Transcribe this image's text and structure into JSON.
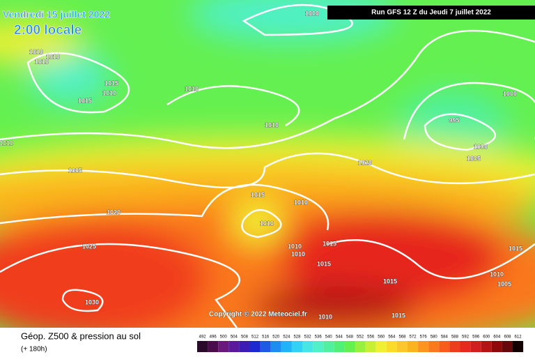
{
  "header": {
    "date": "Vendredi 15 juillet 2022",
    "time": "2:00 locale",
    "run": "Run GFS 12 Z du Jeudi 7 juillet 2022"
  },
  "footer": {
    "title": "Géop. Z500 & pression au sol",
    "lead": "(+ 180h)",
    "copyright": "Copyright © 2022 Meteociel.fr"
  },
  "legend": {
    "values": [
      492,
      496,
      500,
      504,
      508,
      512,
      516,
      520,
      524,
      528,
      532,
      536,
      540,
      544,
      548,
      552,
      556,
      560,
      564,
      568,
      572,
      576,
      580,
      584,
      588,
      592,
      596,
      600,
      604,
      608,
      612
    ],
    "colors": [
      "#2a0a2a",
      "#4b0c4b",
      "#6a1a7a",
      "#5a1a9a",
      "#3c1cb4",
      "#1e28d2",
      "#1e5ae6",
      "#1e8cf0",
      "#1eb4f5",
      "#32d2f5",
      "#46e6e6",
      "#50f0c8",
      "#50f0a0",
      "#50f078",
      "#64f050",
      "#96f03c",
      "#c8f032",
      "#f0f032",
      "#fadc28",
      "#fac828",
      "#fab41e",
      "#fa961e",
      "#fa781e",
      "#fa5a1e",
      "#f03c1e",
      "#e6281e",
      "#d21e1e",
      "#b41414",
      "#8c0a0a",
      "#640a0a",
      "#140000"
    ]
  },
  "isobar_labels": [
    1000,
    1010,
    1010,
    1010,
    1015,
    1010,
    1015,
    1010,
    1000,
    995,
    1010,
    1000,
    1005,
    1010,
    1005,
    1020,
    1015,
    1010,
    1020,
    1010,
    1025,
    1010,
    1015,
    1010,
    1015,
    1015,
    1010,
    1005,
    1015,
    1030,
    1010,
    1015
  ]
}
